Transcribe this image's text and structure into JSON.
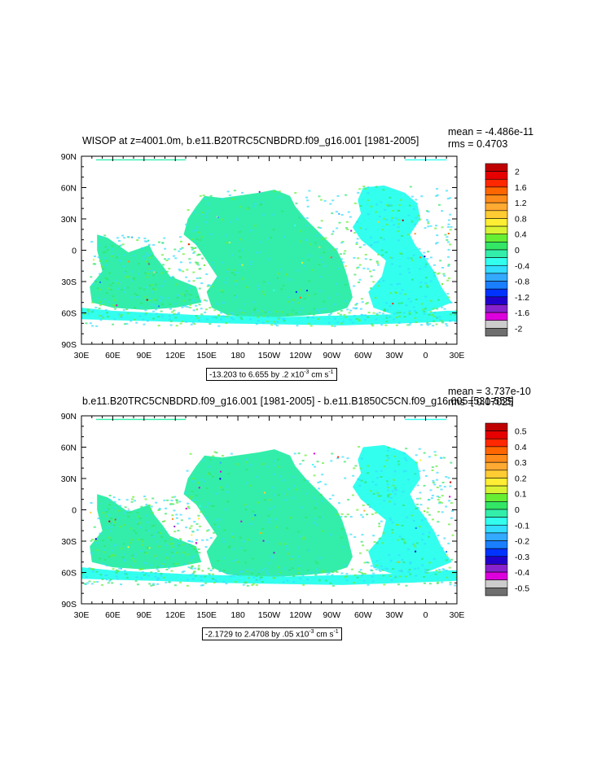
{
  "panels": [
    {
      "title": "WISOP at z=4001.0m, b.e11.B20TRC5CNBDRD.f09_g16.001 [1981-2005]",
      "mean": "mean = -4.486e-11",
      "rms": "rms = 0.4703",
      "range_prefix": "-13.203 to 6.655 by .2 x10",
      "range_exp": "-3",
      "range_units": "cm s",
      "range_units_exp": "-1",
      "colorbar_labels": [
        "2",
        "1.6",
        "1.2",
        "0.8",
        "0.4",
        "0",
        "-0.4",
        "-0.8",
        "-1.2",
        "-1.6",
        "-2"
      ]
    },
    {
      "title": "b.e11.B20TRC5CNBDRD.f09_g16.001 [1981-2005] - b.e11.B1850C5CN.f09_g16.005 [531-555]",
      "mean": "mean = 3.737e-10",
      "rms": "rms = 0.07025",
      "range_prefix": "-2.1729 to 2.4708 by .05 x10",
      "range_exp": "-3",
      "range_units": "cm s",
      "range_units_exp": "-1",
      "colorbar_labels": [
        "0.5",
        "0.4",
        "0.3",
        "0.2",
        "0.1",
        "0",
        "-0.1",
        "-0.2",
        "-0.3",
        "-0.4",
        "-0.5"
      ]
    }
  ],
  "axes": {
    "x_ticks": [
      "30E",
      "60E",
      "90E",
      "120E",
      "150E",
      "180",
      "150W",
      "120W",
      "90W",
      "60W",
      "30W",
      "0",
      "30E"
    ],
    "y_ticks": [
      "90N",
      "60N",
      "30N",
      "0",
      "30S",
      "60S",
      "90S"
    ]
  },
  "colors": {
    "colorbar": [
      "#bf0000",
      "#e60000",
      "#ff2800",
      "#ff6600",
      "#ff8c1a",
      "#ffaa33",
      "#ffcc33",
      "#ffee33",
      "#d9f233",
      "#66ee33",
      "#33e666",
      "#33eeaa",
      "#33ffee",
      "#33ddff",
      "#33aaff",
      "#1a7fff",
      "#0033ff",
      "#2200cc",
      "#8822cc",
      "#dd00dd",
      "#cccccc",
      "#6e6e6e"
    ]
  },
  "chart_data": [
    {
      "type": "heatmap",
      "title": "WISOP at z=4001.0m, b.e11.B20TRC5CNBDRD.f09_g16.001 [1981-2005]",
      "xlim": [
        "30E",
        "30E"
      ],
      "ylim": [
        "90S",
        "90N"
      ],
      "color_levels": [
        2,
        1.8,
        1.6,
        1.4,
        1.2,
        1.0,
        0.8,
        0.6,
        0.4,
        0.2,
        0,
        -0.2,
        -0.4,
        -0.6,
        -0.8,
        -1.0,
        -1.2,
        -1.4,
        -1.6,
        -1.8,
        -2
      ],
      "mean": -4.486e-11,
      "rms": 0.4703,
      "data_range": [
        -13.203,
        6.655
      ],
      "step": 0.2,
      "dominant_values": "mostly between -0.4 and 0.2 (cyan/green) over ocean areas below 4001 m; land/shallow regions blank"
    },
    {
      "type": "heatmap",
      "title": "b.e11.B20TRC5CNBDRD.f09_g16.001 [1981-2005] - b.e11.B1850C5CN.f09_g16.005 [531-555]",
      "xlim": [
        "30E",
        "30E"
      ],
      "ylim": [
        "90S",
        "90N"
      ],
      "color_levels": [
        0.5,
        0.45,
        0.4,
        0.35,
        0.3,
        0.25,
        0.2,
        0.15,
        0.1,
        0.05,
        0,
        -0.05,
        -0.1,
        -0.15,
        -0.2,
        -0.25,
        -0.3,
        -0.35,
        -0.4,
        -0.45,
        -0.5
      ],
      "mean": 3.737e-10,
      "rms": 0.07025,
      "data_range": [
        -2.1729,
        2.4708
      ],
      "step": 0.05,
      "dominant_values": "mostly between -0.1 and 0.05 (cyan/green) over deep ocean areas"
    }
  ]
}
